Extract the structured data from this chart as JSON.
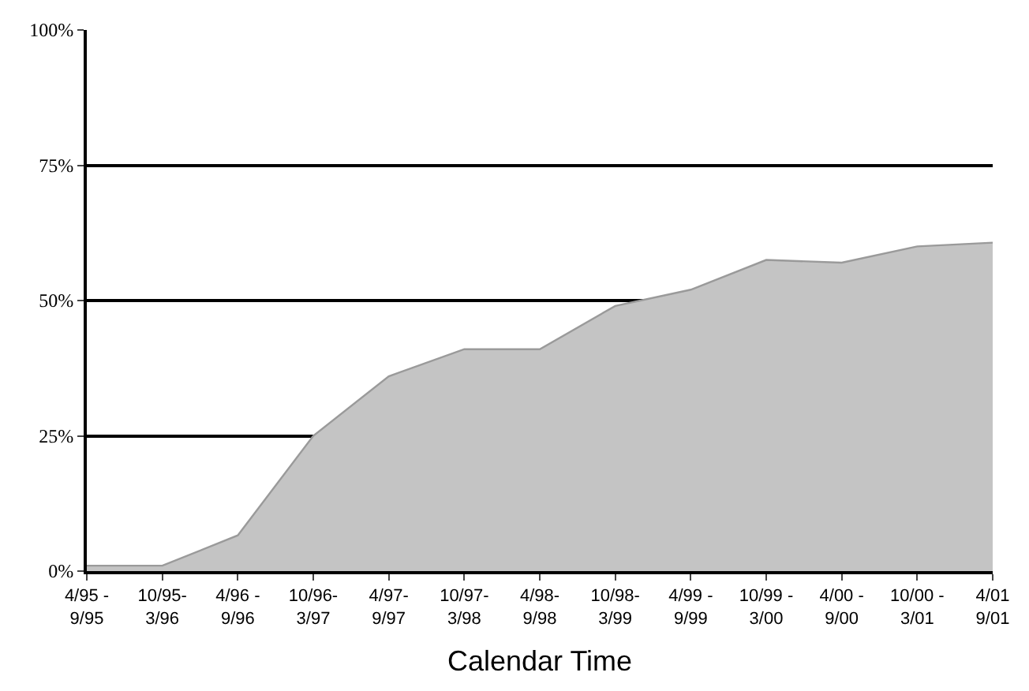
{
  "chart_data": {
    "type": "area",
    "xlabel": "Calendar Time",
    "categories": [
      "4/95 -\n9/95",
      "10/95-\n3/96",
      "4/96 -\n9/96",
      "10/96-\n3/97",
      "4/97-\n9/97",
      "10/97-\n3/98",
      "4/98-\n9/98",
      "10/98-\n3/99",
      "4/99 -\n9/99",
      "10/99 -\n3/00",
      "4/00 -\n9/00",
      "10/00 -\n3/01",
      "4/01\n9/01"
    ],
    "series": [
      {
        "color": "#c4c4c4",
        "values": [
          1,
          1,
          6.6,
          25,
          36,
          41,
          41,
          49,
          52,
          57.5,
          57,
          60,
          60.7
        ]
      }
    ],
    "ylim": [
      0,
      100
    ],
    "yticks": [
      {
        "value": 0,
        "label": "0%"
      },
      {
        "value": 25,
        "label": "25%"
      },
      {
        "value": 50,
        "label": "50%"
      },
      {
        "value": 75,
        "label": "75%"
      },
      {
        "value": 100,
        "label": "100%"
      }
    ],
    "grid": "y",
    "legend": false
  }
}
